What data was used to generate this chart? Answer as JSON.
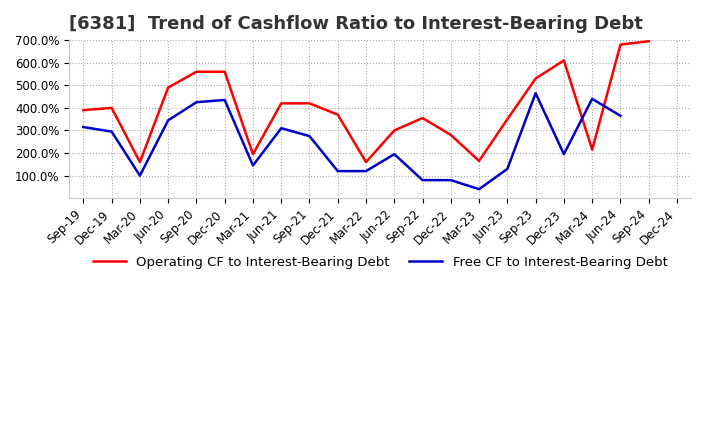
{
  "title": "[6381]  Trend of Cashflow Ratio to Interest-Bearing Debt",
  "x_labels": [
    "Sep-19",
    "Dec-19",
    "Mar-20",
    "Jun-20",
    "Sep-20",
    "Dec-20",
    "Mar-21",
    "Jun-21",
    "Sep-21",
    "Dec-21",
    "Mar-22",
    "Jun-22",
    "Sep-22",
    "Dec-22",
    "Mar-23",
    "Jun-23",
    "Sep-23",
    "Dec-23",
    "Mar-24",
    "Jun-24",
    "Sep-24",
    "Dec-24"
  ],
  "operating_cf": [
    390,
    400,
    160,
    490,
    560,
    560,
    195,
    420,
    420,
    370,
    160,
    300,
    355,
    280,
    165,
    350,
    530,
    610,
    215,
    680,
    695,
    null
  ],
  "free_cf": [
    315,
    295,
    100,
    345,
    425,
    435,
    145,
    310,
    275,
    120,
    120,
    195,
    80,
    80,
    40,
    130,
    465,
    195,
    440,
    365,
    null,
    null
  ],
  "operating_color": "#FF0000",
  "free_color": "#0000CC",
  "background_color": "#FFFFFF",
  "grid_color": "#AAAAAA",
  "ylim": [
    0,
    700
  ],
  "yticks": [
    100,
    200,
    300,
    400,
    500,
    600,
    700
  ],
  "legend_operating": "Operating CF to Interest-Bearing Debt",
  "legend_free": "Free CF to Interest-Bearing Debt",
  "title_fontsize": 13,
  "tick_fontsize": 8.5,
  "legend_fontsize": 9.5,
  "line_width": 1.8
}
